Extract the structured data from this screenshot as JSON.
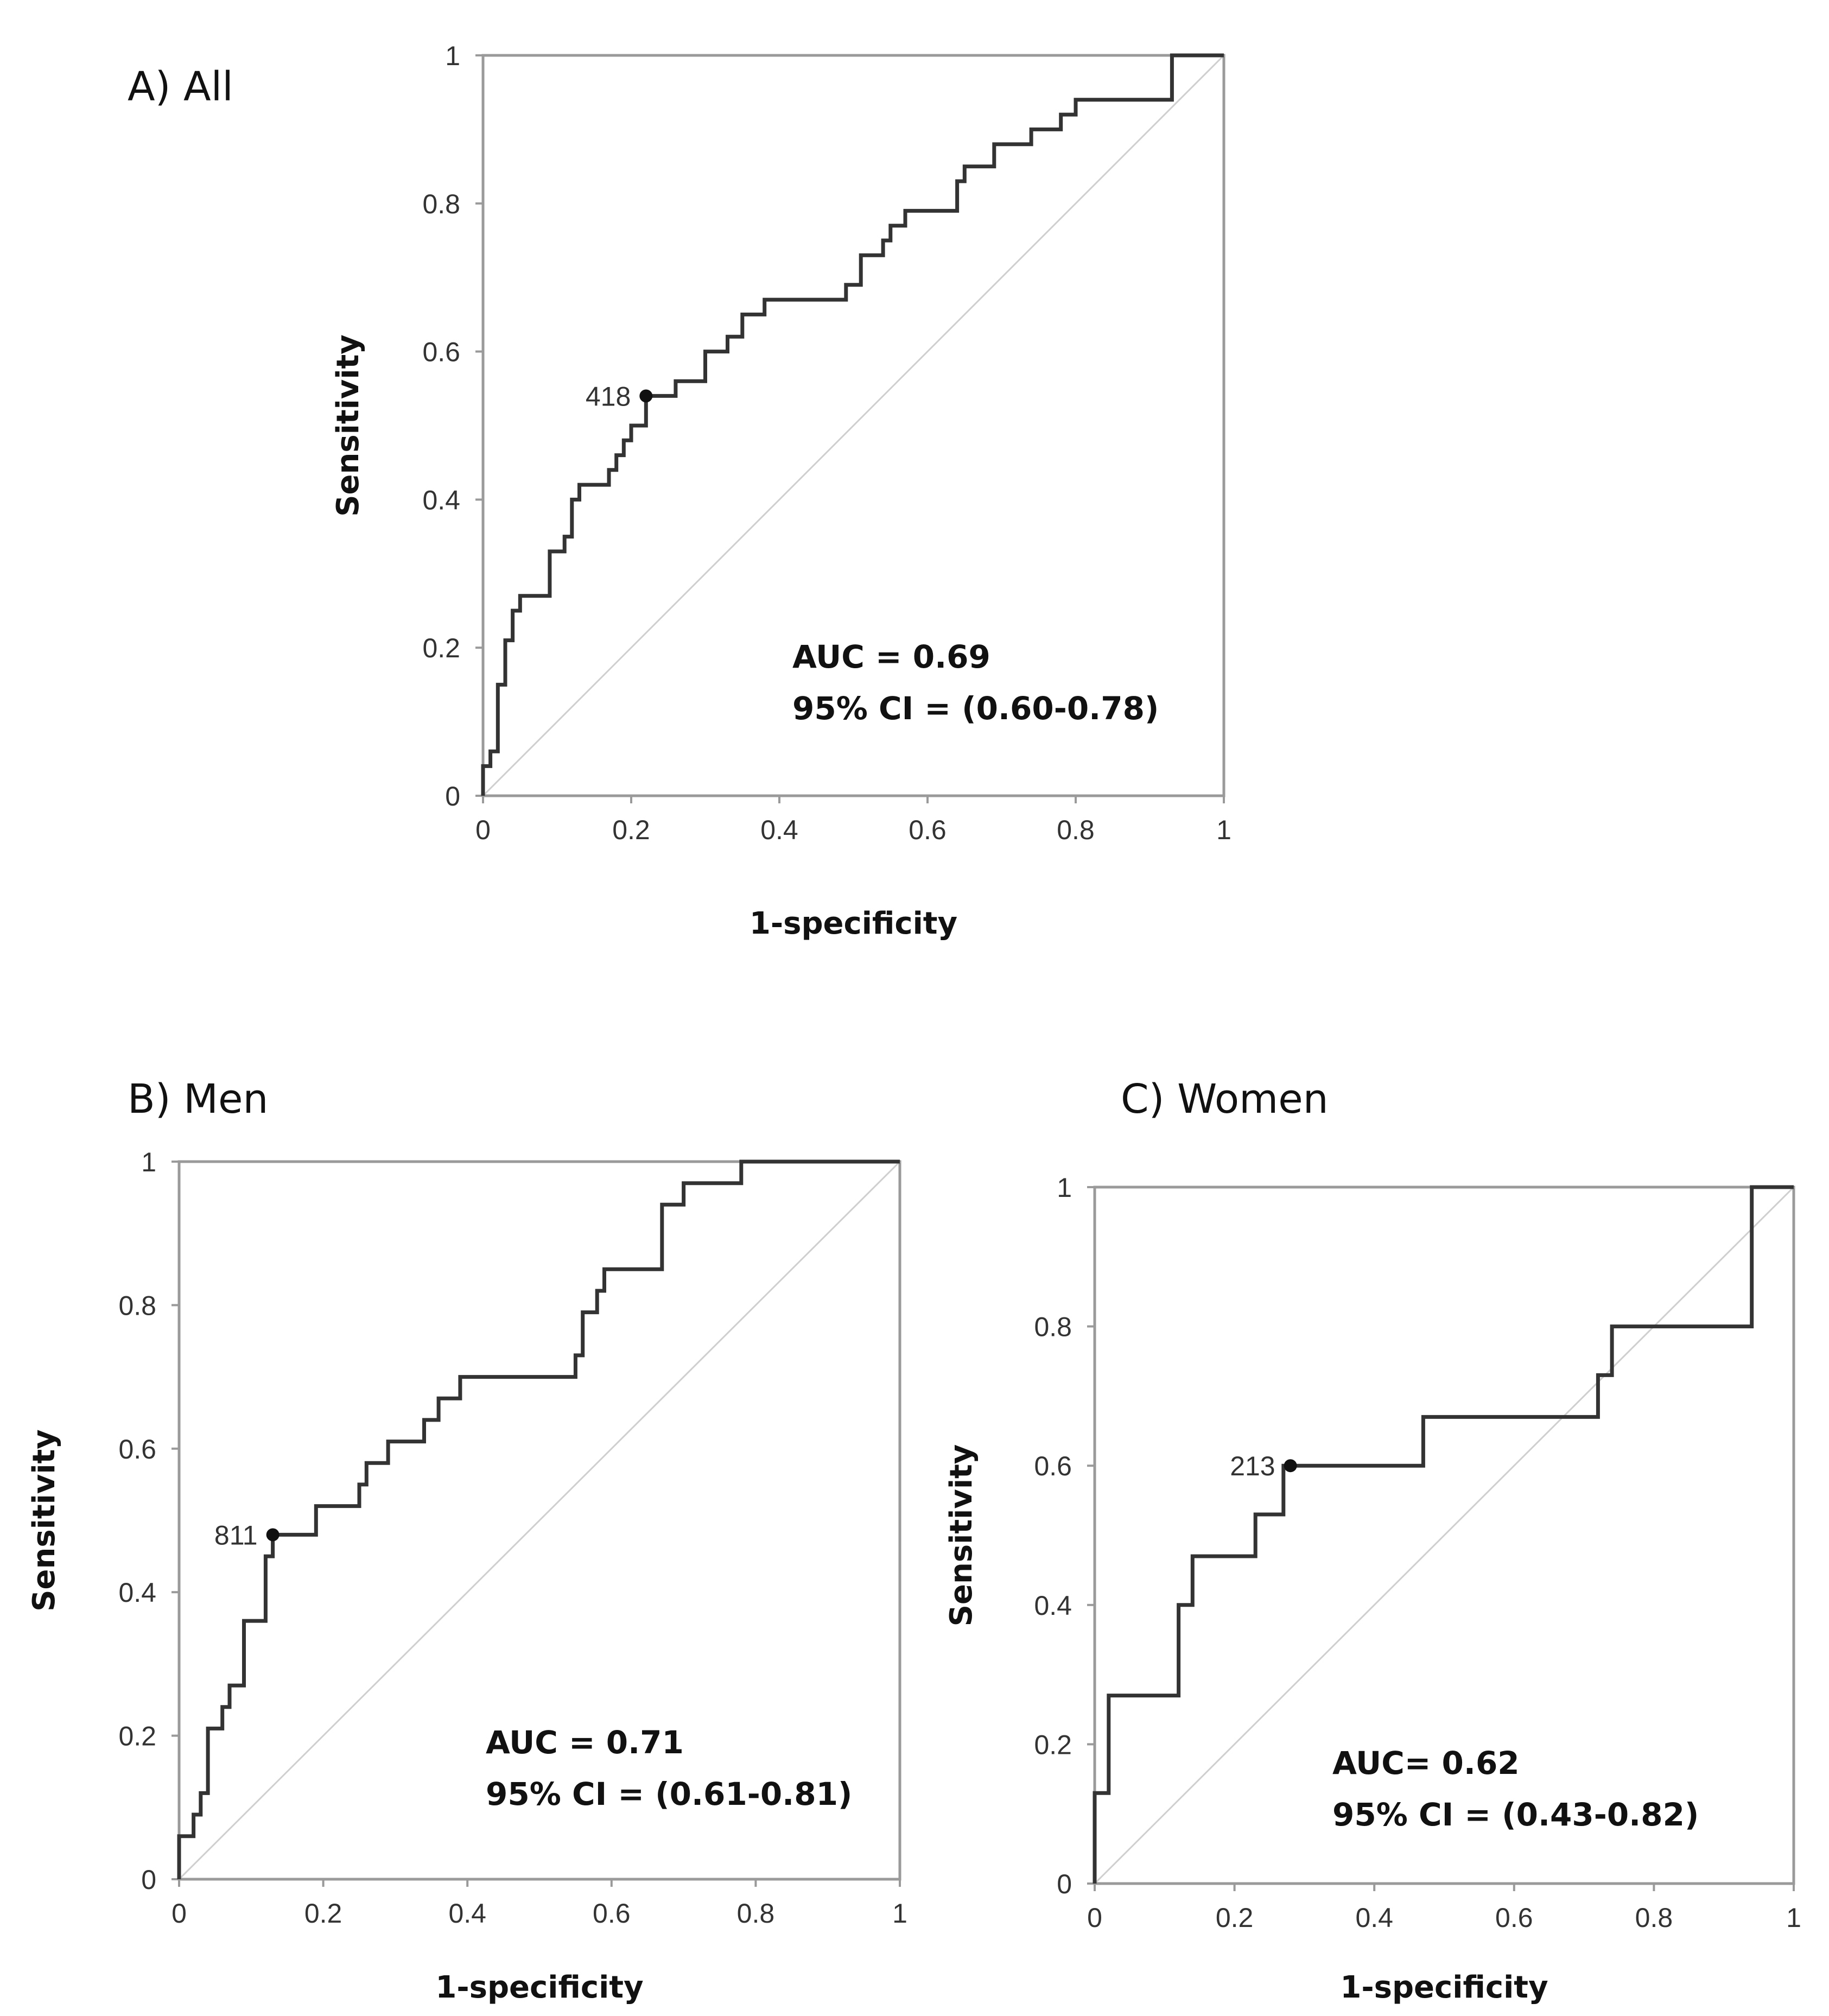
{
  "chart_data": [
    {
      "type": "line",
      "panel_title": "A) All",
      "xlabel": "1-specificity",
      "ylabel": "Sensitivity",
      "xlim": [
        0,
        1
      ],
      "ylim": [
        0,
        1
      ],
      "x_ticks": [
        "0",
        "0.2",
        "0.4",
        "0.6",
        "0.8",
        "1"
      ],
      "y_ticks": [
        "0",
        "0.2",
        "0.4",
        "0.6",
        "0.8",
        "1"
      ],
      "reference_line": "diagonal",
      "cut_point": {
        "label": "418",
        "x": 0.22,
        "y": 0.54
      },
      "annotation": [
        "AUC = 0.69",
        "95% CI = (0.60-0.78)"
      ],
      "roc": [
        [
          0,
          0
        ],
        [
          0,
          0.04
        ],
        [
          0.01,
          0.04
        ],
        [
          0.01,
          0.06
        ],
        [
          0.02,
          0.06
        ],
        [
          0.02,
          0.1
        ],
        [
          0.02,
          0.15
        ],
        [
          0.03,
          0.15
        ],
        [
          0.03,
          0.21
        ],
        [
          0.04,
          0.21
        ],
        [
          0.04,
          0.25
        ],
        [
          0.05,
          0.25
        ],
        [
          0.05,
          0.27
        ],
        [
          0.09,
          0.27
        ],
        [
          0.09,
          0.33
        ],
        [
          0.11,
          0.33
        ],
        [
          0.11,
          0.35
        ],
        [
          0.12,
          0.35
        ],
        [
          0.12,
          0.4
        ],
        [
          0.13,
          0.4
        ],
        [
          0.13,
          0.42
        ],
        [
          0.17,
          0.42
        ],
        [
          0.17,
          0.44
        ],
        [
          0.18,
          0.44
        ],
        [
          0.18,
          0.46
        ],
        [
          0.19,
          0.46
        ],
        [
          0.19,
          0.48
        ],
        [
          0.2,
          0.48
        ],
        [
          0.2,
          0.5
        ],
        [
          0.22,
          0.5
        ],
        [
          0.22,
          0.54
        ],
        [
          0.26,
          0.54
        ],
        [
          0.26,
          0.56
        ],
        [
          0.3,
          0.56
        ],
        [
          0.3,
          0.6
        ],
        [
          0.33,
          0.6
        ],
        [
          0.33,
          0.62
        ],
        [
          0.35,
          0.62
        ],
        [
          0.35,
          0.65
        ],
        [
          0.38,
          0.65
        ],
        [
          0.38,
          0.67
        ],
        [
          0.49,
          0.67
        ],
        [
          0.49,
          0.69
        ],
        [
          0.51,
          0.69
        ],
        [
          0.51,
          0.73
        ],
        [
          0.54,
          0.73
        ],
        [
          0.54,
          0.75
        ],
        [
          0.55,
          0.75
        ],
        [
          0.55,
          0.77
        ],
        [
          0.57,
          0.77
        ],
        [
          0.57,
          0.79
        ],
        [
          0.64,
          0.79
        ],
        [
          0.64,
          0.83
        ],
        [
          0.65,
          0.83
        ],
        [
          0.65,
          0.85
        ],
        [
          0.69,
          0.85
        ],
        [
          0.69,
          0.88
        ],
        [
          0.74,
          0.88
        ],
        [
          0.74,
          0.9
        ],
        [
          0.78,
          0.9
        ],
        [
          0.78,
          0.92
        ],
        [
          0.8,
          0.92
        ],
        [
          0.8,
          0.94
        ],
        [
          0.93,
          0.94
        ],
        [
          0.93,
          1
        ],
        [
          1,
          1
        ]
      ]
    },
    {
      "type": "line",
      "panel_title": "B) Men",
      "xlabel": "1-specificity",
      "ylabel": "Sensitivity",
      "xlim": [
        0,
        1
      ],
      "ylim": [
        0,
        1
      ],
      "x_ticks": [
        "0",
        "0.2",
        "0.4",
        "0.6",
        "0.8",
        "1"
      ],
      "y_ticks": [
        "0",
        "0.2",
        "0.4",
        "0.6",
        "0.8",
        "1"
      ],
      "reference_line": "diagonal",
      "cut_point": {
        "label": "811",
        "x": 0.13,
        "y": 0.48
      },
      "annotation": [
        "AUC = 0.71",
        "95% CI = (0.61-0.81)"
      ],
      "roc": [
        [
          0,
          0
        ],
        [
          0,
          0.06
        ],
        [
          0.02,
          0.06
        ],
        [
          0.02,
          0.09
        ],
        [
          0.03,
          0.09
        ],
        [
          0.03,
          0.12
        ],
        [
          0.04,
          0.12
        ],
        [
          0.04,
          0.15
        ],
        [
          0.04,
          0.21
        ],
        [
          0.05,
          0.21
        ],
        [
          0.06,
          0.21
        ],
        [
          0.06,
          0.24
        ],
        [
          0.07,
          0.24
        ],
        [
          0.07,
          0.27
        ],
        [
          0.09,
          0.27
        ],
        [
          0.09,
          0.36
        ],
        [
          0.12,
          0.36
        ],
        [
          0.12,
          0.45
        ],
        [
          0.13,
          0.45
        ],
        [
          0.13,
          0.48
        ],
        [
          0.19,
          0.48
        ],
        [
          0.19,
          0.52
        ],
        [
          0.25,
          0.52
        ],
        [
          0.25,
          0.55
        ],
        [
          0.26,
          0.55
        ],
        [
          0.26,
          0.58
        ],
        [
          0.29,
          0.58
        ],
        [
          0.29,
          0.61
        ],
        [
          0.34,
          0.61
        ],
        [
          0.34,
          0.64
        ],
        [
          0.36,
          0.64
        ],
        [
          0.36,
          0.67
        ],
        [
          0.39,
          0.67
        ],
        [
          0.39,
          0.7
        ],
        [
          0.55,
          0.7
        ],
        [
          0.55,
          0.73
        ],
        [
          0.56,
          0.73
        ],
        [
          0.56,
          0.79
        ],
        [
          0.58,
          0.79
        ],
        [
          0.58,
          0.82
        ],
        [
          0.59,
          0.82
        ],
        [
          0.59,
          0.85
        ],
        [
          0.67,
          0.85
        ],
        [
          0.67,
          0.94
        ],
        [
          0.7,
          0.94
        ],
        [
          0.7,
          0.97
        ],
        [
          0.78,
          0.97
        ],
        [
          0.78,
          1
        ],
        [
          1,
          1
        ]
      ]
    },
    {
      "type": "line",
      "panel_title": "C) Women",
      "xlabel": "1-specificity",
      "ylabel": "Sensitivity",
      "xlim": [
        0,
        1
      ],
      "ylim": [
        0,
        1
      ],
      "x_ticks": [
        "0",
        "0.2",
        "0.4",
        "0.6",
        "0.8",
        "1"
      ],
      "y_ticks": [
        "0",
        "0.2",
        "0.4",
        "0.6",
        "0.8",
        "1"
      ],
      "reference_line": "diagonal",
      "cut_point": {
        "label": "213",
        "x": 0.28,
        "y": 0.6
      },
      "annotation": [
        "AUC= 0.62",
        "95% CI = (0.43-0.82)"
      ],
      "roc": [
        [
          0,
          0
        ],
        [
          0,
          0.13
        ],
        [
          0.02,
          0.13
        ],
        [
          0.02,
          0.27
        ],
        [
          0.12,
          0.27
        ],
        [
          0.12,
          0.4
        ],
        [
          0.14,
          0.4
        ],
        [
          0.14,
          0.47
        ],
        [
          0.23,
          0.47
        ],
        [
          0.23,
          0.53
        ],
        [
          0.27,
          0.53
        ],
        [
          0.27,
          0.6
        ],
        [
          0.47,
          0.6
        ],
        [
          0.47,
          0.67
        ],
        [
          0.72,
          0.67
        ],
        [
          0.72,
          0.73
        ],
        [
          0.74,
          0.73
        ],
        [
          0.74,
          0.8
        ],
        [
          0.94,
          0.8
        ],
        [
          0.94,
          1
        ],
        [
          1,
          1
        ]
      ]
    }
  ]
}
